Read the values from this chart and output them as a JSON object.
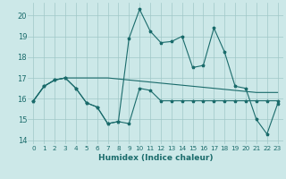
{
  "title": "",
  "xlabel": "Humidex (Indice chaleur)",
  "xlim": [
    -0.5,
    23.5
  ],
  "ylim": [
    13.8,
    20.6
  ],
  "yticks": [
    14,
    15,
    16,
    17,
    18,
    19,
    20
  ],
  "xticks": [
    0,
    1,
    2,
    3,
    4,
    5,
    6,
    7,
    8,
    9,
    10,
    11,
    12,
    13,
    14,
    15,
    16,
    17,
    18,
    19,
    20,
    21,
    22,
    23
  ],
  "bg_color": "#cce8e8",
  "grid_color": "#a0c8c8",
  "line_color": "#1a6b6b",
  "line1_y": [
    15.9,
    16.6,
    16.9,
    17.0,
    16.5,
    15.8,
    15.6,
    14.8,
    14.9,
    14.8,
    16.5,
    16.4,
    15.9,
    15.9,
    15.9,
    15.9,
    15.9,
    15.9,
    15.9,
    15.9,
    15.9,
    15.9,
    15.9,
    15.9
  ],
  "line2_y": [
    15.9,
    16.6,
    16.9,
    17.0,
    17.0,
    17.0,
    17.0,
    17.0,
    16.95,
    16.9,
    16.85,
    16.8,
    16.75,
    16.7,
    16.65,
    16.6,
    16.55,
    16.5,
    16.45,
    16.4,
    16.35,
    16.3,
    16.3,
    16.3
  ],
  "line3_y": [
    15.9,
    16.6,
    16.9,
    17.0,
    16.5,
    15.8,
    15.6,
    14.8,
    14.9,
    18.9,
    20.3,
    19.25,
    18.7,
    18.75,
    19.0,
    17.5,
    17.6,
    19.4,
    18.25,
    16.6,
    16.5,
    15.0,
    14.3,
    15.75
  ]
}
